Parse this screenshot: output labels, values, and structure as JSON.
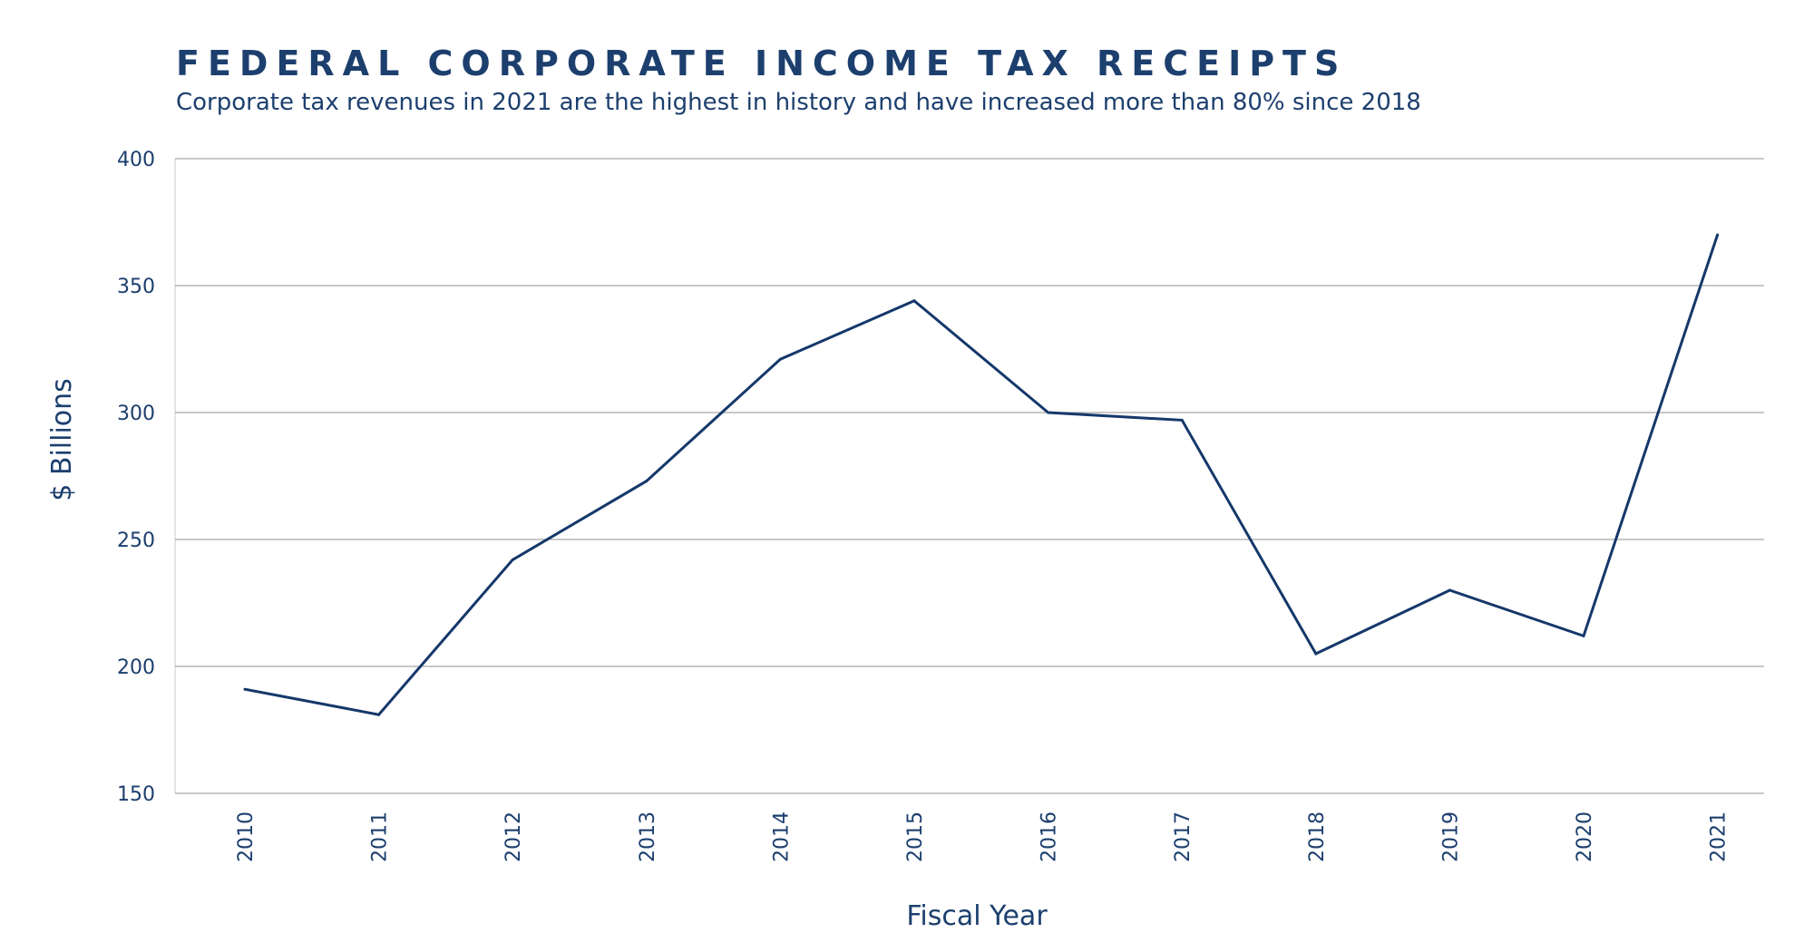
{
  "chart_data": {
    "type": "line",
    "title": "FEDERAL CORPORATE INCOME TAX RECEIPTS",
    "subtitle": "Corporate tax revenues in 2021 are the highest in history and have increased more than 80% since 2018",
    "xlabel": "Fiscal Year",
    "ylabel": "$ Billions",
    "categories": [
      "2010",
      "2011",
      "2012",
      "2013",
      "2014",
      "2015",
      "2016",
      "2017",
      "2018",
      "2019",
      "2020",
      "2021"
    ],
    "series": [
      {
        "values": [
          191,
          181,
          242,
          273,
          321,
          344,
          300,
          297,
          205,
          230,
          212,
          370
        ]
      }
    ],
    "ylim": [
      150,
      400
    ],
    "yticks": [
      400,
      350,
      300,
      250,
      200,
      150
    ],
    "grid": true,
    "line_color": "#15386a",
    "grid_color": "#a8a8a8"
  }
}
